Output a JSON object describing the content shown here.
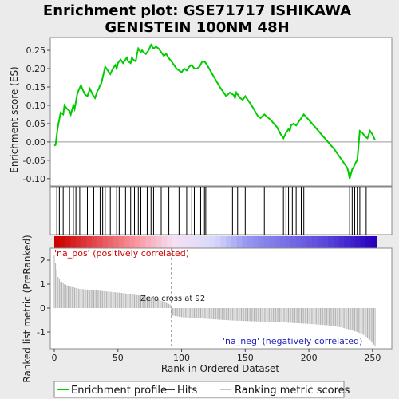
{
  "title_line1": "Enrichment plot: GSE71717 ISHIKAWA",
  "title_line2": "GENISTEIN 100NM 48H",
  "colors": {
    "es_line": "#00cc00",
    "hits": "#000000",
    "ranking": "#b0b0b0",
    "pos_label": "#cc0000",
    "neg_label": "#2222bb",
    "frame": "#ffffff"
  },
  "legend": [
    {
      "key": "enrichment",
      "label": "Enrichment profile"
    },
    {
      "key": "hits",
      "label": "Hits"
    },
    {
      "key": "ranking",
      "label": "Ranking metric scores"
    }
  ],
  "annotations": {
    "pos": "'na_pos' (positively correlated)",
    "neg": "'na_neg' (negatively correlated)",
    "zero": "Zero cross at 92"
  },
  "chart_data": [
    {
      "type": "line",
      "name": "enrichment-profile",
      "ylabel": "Enrichment score (ES)",
      "ylim": [
        -0.12,
        0.285
      ],
      "xlim": [
        0,
        262
      ],
      "yticks": [
        -0.1,
        -0.05,
        0.0,
        0.05,
        0.1,
        0.15,
        0.2,
        0.25
      ],
      "ytick_labels": [
        "-0.10",
        "-0.05",
        "0.00",
        "0.05",
        "0.10",
        "0.15",
        "0.20",
        "0.25"
      ],
      "grid": false,
      "x": [
        0,
        1,
        2,
        3,
        5,
        7,
        8,
        10,
        12,
        13,
        15,
        16,
        18,
        19,
        21,
        22,
        24,
        26,
        28,
        30,
        32,
        34,
        35,
        36,
        37,
        38,
        40,
        41,
        42,
        44,
        46,
        48,
        49,
        50,
        52,
        54,
        55,
        57,
        58,
        60,
        61,
        62,
        64,
        65,
        66,
        68,
        69,
        70,
        72,
        74,
        76,
        78,
        80,
        82,
        84,
        86,
        88,
        90,
        92,
        94,
        96,
        98,
        100,
        102,
        104,
        106,
        108,
        110,
        112,
        114,
        116,
        118,
        120,
        125,
        130,
        135,
        138,
        140,
        141,
        142,
        143,
        144,
        145,
        146,
        148,
        150,
        155,
        160,
        162,
        165,
        170,
        175,
        178,
        180,
        182,
        184,
        185,
        186,
        188,
        190,
        192,
        194,
        196,
        200,
        210,
        220,
        228,
        230,
        231,
        232,
        234,
        235,
        237,
        238,
        240,
        242,
        244,
        246,
        248,
        250,
        252
      ],
      "y": [
        -0.01,
        -0.008,
        0.02,
        0.045,
        0.08,
        0.075,
        0.1,
        0.09,
        0.085,
        0.075,
        0.1,
        0.09,
        0.13,
        0.14,
        0.155,
        0.145,
        0.13,
        0.125,
        0.145,
        0.13,
        0.12,
        0.14,
        0.145,
        0.155,
        0.16,
        0.175,
        0.205,
        0.2,
        0.195,
        0.185,
        0.2,
        0.21,
        0.2,
        0.215,
        0.225,
        0.215,
        0.22,
        0.23,
        0.22,
        0.215,
        0.23,
        0.225,
        0.22,
        0.24,
        0.255,
        0.245,
        0.25,
        0.245,
        0.24,
        0.25,
        0.265,
        0.255,
        0.26,
        0.255,
        0.245,
        0.235,
        0.24,
        0.228,
        0.22,
        0.21,
        0.2,
        0.195,
        0.19,
        0.2,
        0.195,
        0.205,
        0.21,
        0.2,
        0.2,
        0.205,
        0.218,
        0.22,
        0.21,
        0.18,
        0.15,
        0.125,
        0.135,
        0.13,
        0.128,
        0.12,
        0.135,
        0.13,
        0.125,
        0.12,
        0.115,
        0.125,
        0.1,
        0.07,
        0.065,
        0.075,
        0.06,
        0.04,
        0.02,
        0.01,
        0.025,
        0.035,
        0.03,
        0.045,
        0.05,
        0.045,
        0.055,
        0.065,
        0.075,
        0.06,
        0.02,
        -0.02,
        -0.06,
        -0.07,
        -0.08,
        -0.1,
        -0.075,
        -0.07,
        -0.055,
        -0.05,
        0.03,
        0.025,
        0.015,
        0.01,
        0.03,
        0.02,
        0.005
      ]
    },
    {
      "type": "hits",
      "name": "hits",
      "x": [
        2,
        4,
        7,
        12,
        15,
        17,
        20,
        26,
        31,
        36,
        38,
        40,
        44,
        49,
        51,
        56,
        60,
        63,
        66,
        68,
        73,
        76,
        78,
        84,
        90,
        98,
        104,
        108,
        110,
        115,
        118,
        119,
        140,
        144,
        150,
        165,
        180,
        182,
        184,
        187,
        190,
        194,
        196,
        232,
        234,
        236,
        238,
        240,
        245
      ]
    },
    {
      "type": "area",
      "name": "ranking-metric",
      "xlabel": "Rank in Ordered Dataset",
      "ylabel": "Ranked list metric (PreRanked)",
      "ylim": [
        -1.7,
        2.5
      ],
      "xlim": [
        0,
        262
      ],
      "yticks": [
        -1,
        0,
        1,
        2
      ],
      "ytick_labels": [
        "-1",
        "0",
        "1",
        "2"
      ],
      "xticks": [
        0,
        50,
        100,
        150,
        200,
        250
      ],
      "xtick_labels": [
        "0",
        "50",
        "100",
        "150",
        "200",
        "250"
      ],
      "zero_cross": 92,
      "n": 253,
      "x": [
        0,
        1,
        2,
        3,
        5,
        8,
        12,
        20,
        30,
        40,
        50,
        60,
        70,
        80,
        91,
        92,
        100,
        120,
        140,
        160,
        180,
        200,
        215,
        225,
        232,
        238,
        243,
        247,
        250,
        252
      ],
      "y": [
        2.2,
        1.9,
        1.6,
        1.3,
        1.1,
        1.0,
        0.9,
        0.8,
        0.75,
        0.7,
        0.65,
        0.58,
        0.5,
        0.4,
        0.15,
        -0.3,
        -0.38,
        -0.45,
        -0.52,
        -0.56,
        -0.6,
        -0.66,
        -0.72,
        -0.8,
        -0.9,
        -1.0,
        -1.12,
        -1.28,
        -1.45,
        -1.6
      ]
    }
  ]
}
